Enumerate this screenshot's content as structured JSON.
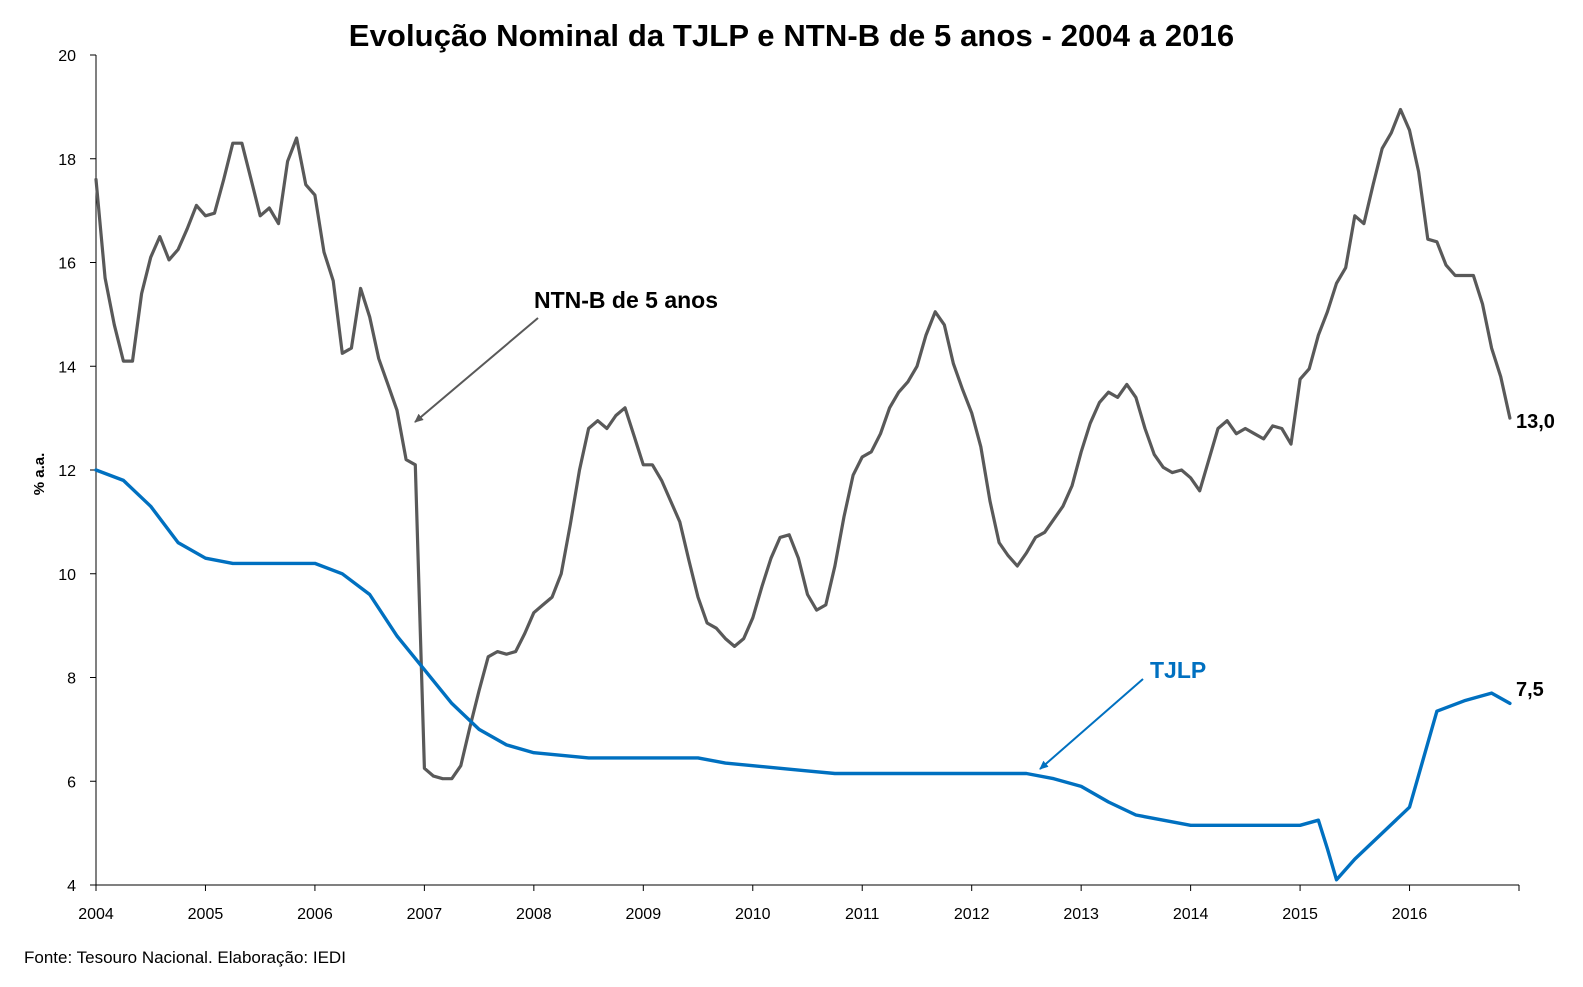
{
  "source_note": "Fonte: Tesouro Nacional. Elaboração: IEDI",
  "colors": {
    "ntnb": "#595959",
    "tjlp": "#0070C0",
    "axis": "#000000"
  },
  "chart_data": {
    "type": "line",
    "title": "Evolução Nominal da TJLP e NTN-B de 5 anos - 2004 a 2016",
    "xlabel": "",
    "ylabel": "% a.a.",
    "xlim": [
      2004.0,
      2017.0
    ],
    "ylim": [
      4,
      20
    ],
    "yticks": [
      "4",
      "6",
      "8",
      "10",
      "12",
      "14",
      "16",
      "18",
      "20"
    ],
    "xticks": [
      "2004",
      "2005",
      "2006",
      "2007",
      "2008",
      "2009",
      "2010",
      "2011",
      "2012",
      "2013",
      "2014",
      "2015",
      "2016"
    ],
    "grid": false,
    "legend": "none",
    "annotations": [
      {
        "text": "NTN-B de 5 anos",
        "series": "NTN-B de 5 anos"
      },
      {
        "text": "TJLP",
        "series": "TJLP"
      }
    ],
    "end_labels": [
      "13,0",
      "7,5"
    ],
    "series": [
      {
        "name": "NTN-B de 5 anos",
        "x": [
          2004.0,
          2004.083,
          2004.167,
          2004.25,
          2004.333,
          2004.417,
          2004.5,
          2004.583,
          2004.667,
          2004.75,
          2004.833,
          2004.917,
          2005.0,
          2005.083,
          2005.167,
          2005.25,
          2005.333,
          2005.417,
          2005.5,
          2005.583,
          2005.667,
          2005.75,
          2005.833,
          2005.917,
          2006.0,
          2006.083,
          2006.167,
          2006.25,
          2006.333,
          2006.417,
          2006.5,
          2006.583,
          2006.667,
          2006.75,
          2006.833,
          2006.917,
          2007.0,
          2007.083,
          2007.167,
          2007.25,
          2007.333,
          2007.417,
          2007.5,
          2007.583,
          2007.667,
          2007.75,
          2007.833,
          2007.917,
          2008.0,
          2008.083,
          2008.167,
          2008.25,
          2008.333,
          2008.417,
          2008.5,
          2008.583,
          2008.667,
          2008.75,
          2008.833,
          2008.917,
          2009.0,
          2009.083,
          2009.167,
          2009.25,
          2009.333,
          2009.417,
          2009.5,
          2009.583,
          2009.667,
          2009.75,
          2009.833,
          2009.917,
          2010.0,
          2010.083,
          2010.167,
          2010.25,
          2010.333,
          2010.417,
          2010.5,
          2010.583,
          2010.667,
          2010.75,
          2010.833,
          2010.917,
          2011.0,
          2011.083,
          2011.167,
          2011.25,
          2011.333,
          2011.417,
          2011.5,
          2011.583,
          2011.667,
          2011.75,
          2011.833,
          2011.917,
          2012.0,
          2012.083,
          2012.167,
          2012.25,
          2012.333,
          2012.417,
          2012.5,
          2012.583,
          2012.667,
          2012.75,
          2012.833,
          2012.917,
          2013.0,
          2013.083,
          2013.167,
          2013.25,
          2013.333,
          2013.417,
          2013.5,
          2013.583,
          2013.667,
          2013.75,
          2013.833,
          2013.917,
          2014.0,
          2014.083,
          2014.167,
          2014.25,
          2014.333,
          2014.417,
          2014.5,
          2014.583,
          2014.667,
          2014.75,
          2014.833,
          2014.917,
          2015.0,
          2015.083,
          2015.167,
          2015.25,
          2015.333,
          2015.417,
          2015.5,
          2015.583,
          2015.667,
          2015.75,
          2015.833,
          2015.917,
          2016.0,
          2016.083,
          2016.167,
          2016.25,
          2016.333,
          2016.417,
          2016.5,
          2016.583,
          2016.667,
          2016.75,
          2016.833,
          2016.917
        ],
        "values": [
          17.6,
          15.7,
          14.8,
          14.1,
          14.1,
          15.4,
          16.1,
          16.5,
          16.05,
          16.25,
          16.65,
          17.1,
          16.9,
          16.95,
          17.6,
          18.3,
          18.3,
          17.6,
          16.9,
          17.05,
          16.75,
          17.95,
          18.4,
          17.5,
          17.3,
          16.2,
          15.65,
          14.25,
          14.35,
          15.5,
          14.95,
          14.15,
          13.65,
          13.15,
          12.2,
          12.1,
          6.25,
          6.1,
          6.05,
          6.05,
          6.3,
          7.05,
          7.75,
          8.4,
          8.5,
          8.45,
          8.5,
          8.85,
          9.25,
          9.4,
          9.55,
          10.0,
          10.95,
          12.0,
          12.8,
          12.95,
          12.8,
          13.05,
          13.2,
          12.65,
          12.1,
          12.1,
          11.8,
          11.4,
          11.0,
          10.25,
          9.55,
          9.05,
          8.95,
          8.75,
          8.6,
          8.75,
          9.15,
          9.75,
          10.3,
          10.7,
          10.75,
          10.3,
          9.6,
          9.3,
          9.4,
          10.15,
          11.1,
          11.9,
          12.25,
          12.35,
          12.7,
          13.2,
          13.5,
          13.7,
          14.0,
          14.6,
          15.05,
          14.8,
          14.05,
          13.55,
          13.1,
          12.45,
          11.4,
          10.6,
          10.35,
          10.15,
          10.4,
          10.7,
          10.8,
          11.05,
          11.3,
          11.7,
          12.35,
          12.9,
          13.3,
          13.5,
          13.4,
          13.65,
          13.4,
          12.8,
          12.3,
          12.05,
          11.95,
          12.0,
          11.85,
          11.6,
          12.2,
          12.8,
          12.95,
          12.7,
          12.8,
          12.7,
          12.6,
          12.85,
          12.8,
          12.5,
          13.75,
          13.95,
          14.6,
          15.05,
          15.6,
          15.9,
          16.9,
          16.75,
          17.5,
          18.2,
          18.5,
          18.95,
          18.55,
          17.75,
          16.45,
          16.4,
          15.95,
          15.75,
          15.75,
          15.75,
          15.2,
          14.35,
          13.8,
          13.0
        ]
      },
      {
        "name": "TJLP",
        "x": [
          2004.0,
          2004.25,
          2004.5,
          2004.75,
          2005.0,
          2005.25,
          2005.5,
          2005.75,
          2006.0,
          2006.25,
          2006.5,
          2006.75,
          2007.0,
          2007.25,
          2007.5,
          2007.75,
          2008.0,
          2008.25,
          2008.5,
          2008.75,
          2009.0,
          2009.25,
          2009.5,
          2009.75,
          2010.0,
          2010.25,
          2010.5,
          2010.75,
          2011.0,
          2011.25,
          2011.5,
          2011.75,
          2012.0,
          2012.25,
          2012.5,
          2012.75,
          2013.0,
          2013.25,
          2013.5,
          2013.75,
          2014.0,
          2014.25,
          2014.5,
          2014.75,
          2015.0,
          2015.167,
          2015.25,
          2015.333,
          2015.5,
          2015.75,
          2016.0,
          2016.25,
          2016.5,
          2016.75,
          2016.917
        ],
        "values": [
          12.0,
          11.8,
          11.3,
          10.6,
          10.3,
          10.2,
          10.2,
          10.2,
          10.2,
          10.0,
          9.6,
          8.8,
          8.15,
          7.5,
          7.0,
          6.7,
          6.55,
          6.5,
          6.45,
          6.45,
          6.45,
          6.45,
          6.45,
          6.35,
          6.3,
          6.25,
          6.2,
          6.15,
          6.15,
          6.15,
          6.15,
          6.15,
          6.15,
          6.15,
          6.15,
          6.05,
          5.9,
          5.6,
          5.35,
          5.25,
          5.15,
          5.15,
          5.15,
          5.15,
          5.15,
          5.25,
          4.7,
          4.1,
          4.5,
          5.0,
          5.5,
          7.35,
          7.55,
          7.7,
          7.5
        ]
      }
    ]
  }
}
